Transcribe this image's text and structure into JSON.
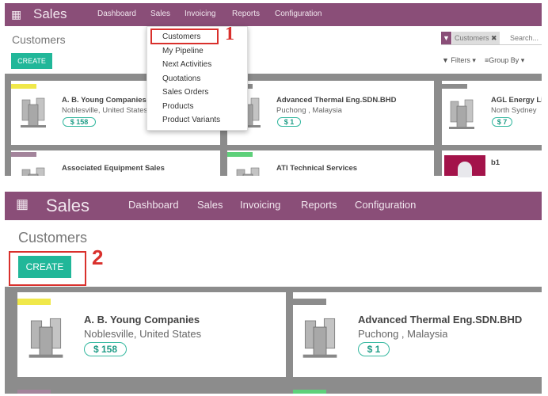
{
  "app": {
    "title": "Sales",
    "menu": [
      "Dashboard",
      "Sales",
      "Invoicing",
      "Reports",
      "Configuration"
    ],
    "brand_color": "#8a4e78",
    "accent_color": "#21b799"
  },
  "page": {
    "title": "Customers",
    "create_label": "CREATE"
  },
  "search": {
    "facet": "Customers",
    "placeholder": "Search..."
  },
  "controls": {
    "filters": "Filters",
    "group_by": "Group By"
  },
  "dropdown": {
    "items": [
      "Customers",
      "My Pipeline",
      "Next Activities",
      "Quotations",
      "Sales Orders",
      "Products",
      "Product Variants"
    ]
  },
  "steps": {
    "one": "1",
    "two": "2"
  },
  "customers": [
    {
      "name": "A. B. Young Companies",
      "location": "Noblesville, United States",
      "amount": "$ 158",
      "tag_color": "#f0e84a"
    },
    {
      "name": "Advanced Thermal Eng.SDN.BHD",
      "location": "Puchong , Malaysia",
      "amount": "$ 1",
      "tag_color": "#8c8c8c"
    },
    {
      "name": "AGL Energy Limited",
      "location": "North Sydney",
      "amount": "$ 7",
      "tag_color": "#8c8c8c"
    },
    {
      "name": "Associated Equipment Sales",
      "tag_color": "#a3849b"
    },
    {
      "name": "ATI Technical Services",
      "tag_color": "#5ed07a"
    },
    {
      "name": "b1"
    }
  ]
}
